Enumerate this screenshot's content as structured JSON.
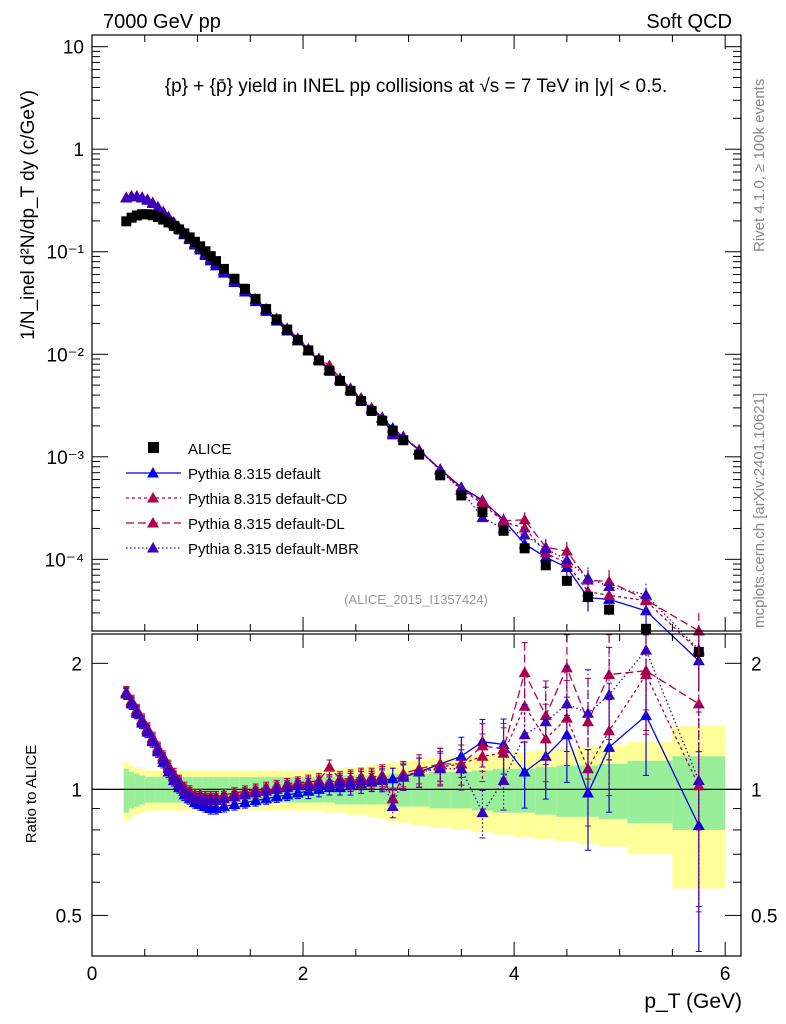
{
  "header": {
    "left": "7000 GeV pp",
    "right": "Soft QCD"
  },
  "side_labels": {
    "rivet": "Rivet 4.1.0, ≥ 100k events",
    "mcplots": "mcplots.cern.ch [arXiv:2401.10621]"
  },
  "chart_data": {
    "type": "scatter",
    "title": "{p} + {p̄} yield in INEL pp collisions at √s = 7 TeV in |y| < 0.5.",
    "ylabel": "1/N_inel d²N/dp_T dy (c/GeV)",
    "xlabel": "p_T (GeV)",
    "ratio_ylabel": "Ratio to ALICE",
    "analysis_id": "(ALICE_2015_I1357424)",
    "xlim": [
      0,
      6.15
    ],
    "ylim": [
      2e-05,
      13
    ],
    "ratio_ylim": [
      0.4,
      2.35
    ],
    "yscale": "log",
    "x_ticks": [
      "0",
      "2",
      "4",
      "6"
    ],
    "y_ticks": [
      "10",
      "1",
      "10⁻¹",
      "10⁻²",
      "10⁻³",
      "10⁻⁴"
    ],
    "ratio_ticks": [
      "2",
      "1",
      "0.5"
    ],
    "x": [
      0.325,
      0.375,
      0.425,
      0.475,
      0.525,
      0.575,
      0.625,
      0.675,
      0.725,
      0.775,
      0.825,
      0.875,
      0.925,
      0.975,
      1.025,
      1.075,
      1.125,
      1.175,
      1.25,
      1.35,
      1.45,
      1.55,
      1.65,
      1.75,
      1.85,
      1.95,
      2.05,
      2.15,
      2.25,
      2.35,
      2.45,
      2.55,
      2.65,
      2.75,
      2.85,
      2.95,
      3.1,
      3.3,
      3.5,
      3.7,
      3.9,
      4.1,
      4.3,
      4.5,
      4.7,
      4.9,
      5.25,
      5.75
    ],
    "data_label": "ALICE",
    "data_values": [
      0.198,
      0.215,
      0.226,
      0.232,
      0.232,
      0.227,
      0.218,
      0.206,
      0.193,
      0.179,
      0.165,
      0.151,
      0.138,
      0.125,
      0.113,
      0.101,
      0.0905,
      0.081,
      0.068,
      0.0545,
      0.0435,
      0.0347,
      0.0276,
      0.0219,
      0.0174,
      0.0138,
      0.0109,
      0.0087,
      0.0069,
      0.0055,
      0.0044,
      0.0035,
      0.0028,
      0.00225,
      0.0018,
      0.00145,
      0.00105,
      0.00066,
      0.00042,
      0.00029,
      0.00019,
      0.000128,
      8.75e-05,
      6.17e-05,
      4.32e-05,
      3.23e-05,
      2.1e-05,
      1.25e-05
    ],
    "band_stat_frac": [
      0.12,
      0.1,
      0.09,
      0.08,
      0.07,
      0.07,
      0.07,
      0.07,
      0.07,
      0.07,
      0.07,
      0.07,
      0.07,
      0.07,
      0.07,
      0.07,
      0.07,
      0.07,
      0.07,
      0.07,
      0.07,
      0.07,
      0.07,
      0.07,
      0.07,
      0.07,
      0.07,
      0.07,
      0.07,
      0.08,
      0.08,
      0.08,
      0.08,
      0.08,
      0.09,
      0.09,
      0.09,
      0.1,
      0.1,
      0.11,
      0.12,
      0.12,
      0.13,
      0.14,
      0.14,
      0.15,
      0.17,
      0.2
    ],
    "band_tot_frac": [
      0.16,
      0.14,
      0.13,
      0.12,
      0.11,
      0.11,
      0.11,
      0.11,
      0.11,
      0.11,
      0.11,
      0.11,
      0.11,
      0.11,
      0.11,
      0.11,
      0.11,
      0.11,
      0.11,
      0.11,
      0.11,
      0.11,
      0.11,
      0.11,
      0.11,
      0.11,
      0.11,
      0.11,
      0.12,
      0.12,
      0.13,
      0.13,
      0.14,
      0.15,
      0.16,
      0.17,
      0.18,
      0.19,
      0.2,
      0.21,
      0.22,
      0.23,
      0.24,
      0.25,
      0.26,
      0.27,
      0.3,
      0.42
    ],
    "series": [
      {
        "name": "Pythia 8.315 default",
        "color": "#0000ee",
        "dash": "solid",
        "ratios": [
          1.7,
          1.6,
          1.52,
          1.44,
          1.37,
          1.3,
          1.23,
          1.16,
          1.1,
          1.05,
          1.01,
          0.97,
          0.95,
          0.93,
          0.92,
          0.91,
          0.9,
          0.9,
          0.91,
          0.92,
          0.93,
          0.94,
          0.95,
          0.96,
          0.97,
          0.98,
          0.99,
          1.0,
          1.01,
          1.01,
          1.02,
          1.03,
          1.04,
          1.05,
          1.06,
          1.07,
          1.1,
          1.15,
          1.2,
          1.3,
          1.28,
          1.1,
          1.2,
          1.35,
          0.98,
          1.26,
          1.5,
          0.82
        ],
        "err_frac": [
          0.03,
          0.03,
          0.03,
          0.03,
          0.03,
          0.03,
          0.03,
          0.03,
          0.03,
          0.03,
          0.03,
          0.03,
          0.03,
          0.03,
          0.03,
          0.03,
          0.03,
          0.03,
          0.03,
          0.03,
          0.03,
          0.03,
          0.03,
          0.03,
          0.03,
          0.03,
          0.04,
          0.04,
          0.04,
          0.04,
          0.05,
          0.05,
          0.05,
          0.06,
          0.06,
          0.07,
          0.08,
          0.09,
          0.11,
          0.13,
          0.15,
          0.18,
          0.21,
          0.23,
          0.27,
          0.3,
          0.28,
          0.5
        ]
      },
      {
        "name": "Pythia 8.315 default-CD",
        "color": "#b0004a",
        "dash": "3,3",
        "ratios": [
          1.7,
          1.62,
          1.54,
          1.46,
          1.39,
          1.32,
          1.25,
          1.19,
          1.13,
          1.08,
          1.04,
          1.0,
          0.98,
          0.96,
          0.96,
          0.95,
          0.95,
          0.95,
          0.96,
          0.97,
          0.98,
          0.99,
          1.0,
          1.01,
          1.02,
          1.03,
          1.03,
          1.04,
          1.04,
          1.05,
          1.05,
          1.06,
          1.06,
          1.07,
          0.95,
          1.08,
          1.1,
          1.13,
          1.15,
          1.2,
          1.22,
          1.58,
          1.32,
          1.48,
          1.12,
          1.38,
          1.88,
          1.02
        ],
        "err_frac": [
          0.03,
          0.03,
          0.03,
          0.03,
          0.03,
          0.03,
          0.03,
          0.03,
          0.03,
          0.03,
          0.03,
          0.03,
          0.03,
          0.03,
          0.03,
          0.03,
          0.03,
          0.03,
          0.03,
          0.03,
          0.03,
          0.03,
          0.03,
          0.03,
          0.03,
          0.03,
          0.04,
          0.04,
          0.04,
          0.04,
          0.05,
          0.05,
          0.05,
          0.06,
          0.06,
          0.07,
          0.08,
          0.09,
          0.11,
          0.13,
          0.15,
          0.18,
          0.21,
          0.23,
          0.27,
          0.3,
          0.28,
          0.5
        ]
      },
      {
        "name": "Pythia 8.315 default-DL",
        "color": "#b0004a",
        "dash": "8,4",
        "ratios": [
          1.71,
          1.63,
          1.55,
          1.47,
          1.4,
          1.33,
          1.26,
          1.2,
          1.14,
          1.09,
          1.05,
          1.01,
          0.99,
          0.97,
          0.97,
          0.96,
          0.96,
          0.96,
          0.97,
          0.98,
          0.99,
          1.0,
          1.01,
          1.02,
          1.03,
          1.04,
          1.04,
          1.05,
          1.13,
          1.06,
          1.06,
          1.07,
          1.07,
          1.08,
          0.95,
          1.09,
          1.12,
          1.15,
          1.15,
          1.27,
          1.25,
          1.9,
          1.5,
          1.95,
          1.45,
          1.88,
          1.92,
          1.6
        ],
        "err_frac": [
          0.03,
          0.03,
          0.03,
          0.03,
          0.03,
          0.03,
          0.03,
          0.03,
          0.03,
          0.03,
          0.03,
          0.03,
          0.03,
          0.03,
          0.03,
          0.03,
          0.03,
          0.03,
          0.03,
          0.03,
          0.03,
          0.03,
          0.03,
          0.03,
          0.03,
          0.03,
          0.04,
          0.04,
          0.04,
          0.04,
          0.05,
          0.05,
          0.05,
          0.06,
          0.06,
          0.07,
          0.08,
          0.09,
          0.11,
          0.13,
          0.15,
          0.18,
          0.21,
          0.23,
          0.27,
          0.3,
          0.28,
          0.5
        ]
      },
      {
        "name": "Pythia 8.315 default-MBR",
        "color": "#3a00c0",
        "dash": "1.5,2.5",
        "ratios": [
          1.69,
          1.61,
          1.53,
          1.45,
          1.38,
          1.31,
          1.24,
          1.18,
          1.12,
          1.07,
          1.03,
          0.99,
          0.97,
          0.95,
          0.95,
          0.94,
          0.94,
          0.94,
          0.95,
          0.96,
          0.97,
          0.98,
          0.99,
          1.0,
          1.01,
          1.02,
          1.02,
          1.03,
          1.03,
          1.04,
          1.04,
          1.05,
          1.05,
          1.06,
          0.91,
          1.07,
          1.1,
          1.12,
          1.12,
          0.88,
          1.05,
          1.35,
          1.45,
          1.6,
          1.52,
          1.68,
          2.15,
          1.05
        ],
        "err_frac": [
          0.03,
          0.03,
          0.03,
          0.03,
          0.03,
          0.03,
          0.03,
          0.03,
          0.03,
          0.03,
          0.03,
          0.03,
          0.03,
          0.03,
          0.03,
          0.03,
          0.03,
          0.03,
          0.03,
          0.03,
          0.03,
          0.03,
          0.03,
          0.03,
          0.03,
          0.03,
          0.04,
          0.04,
          0.04,
          0.04,
          0.05,
          0.05,
          0.05,
          0.06,
          0.06,
          0.07,
          0.08,
          0.09,
          0.11,
          0.13,
          0.15,
          0.18,
          0.21,
          0.23,
          0.27,
          0.3,
          0.28,
          0.5
        ]
      }
    ],
    "legend_position": "bottom-left"
  },
  "colors": {
    "band_stat": "#99ee99",
    "band_total": "#ffff99",
    "data_marker": "#000000"
  }
}
